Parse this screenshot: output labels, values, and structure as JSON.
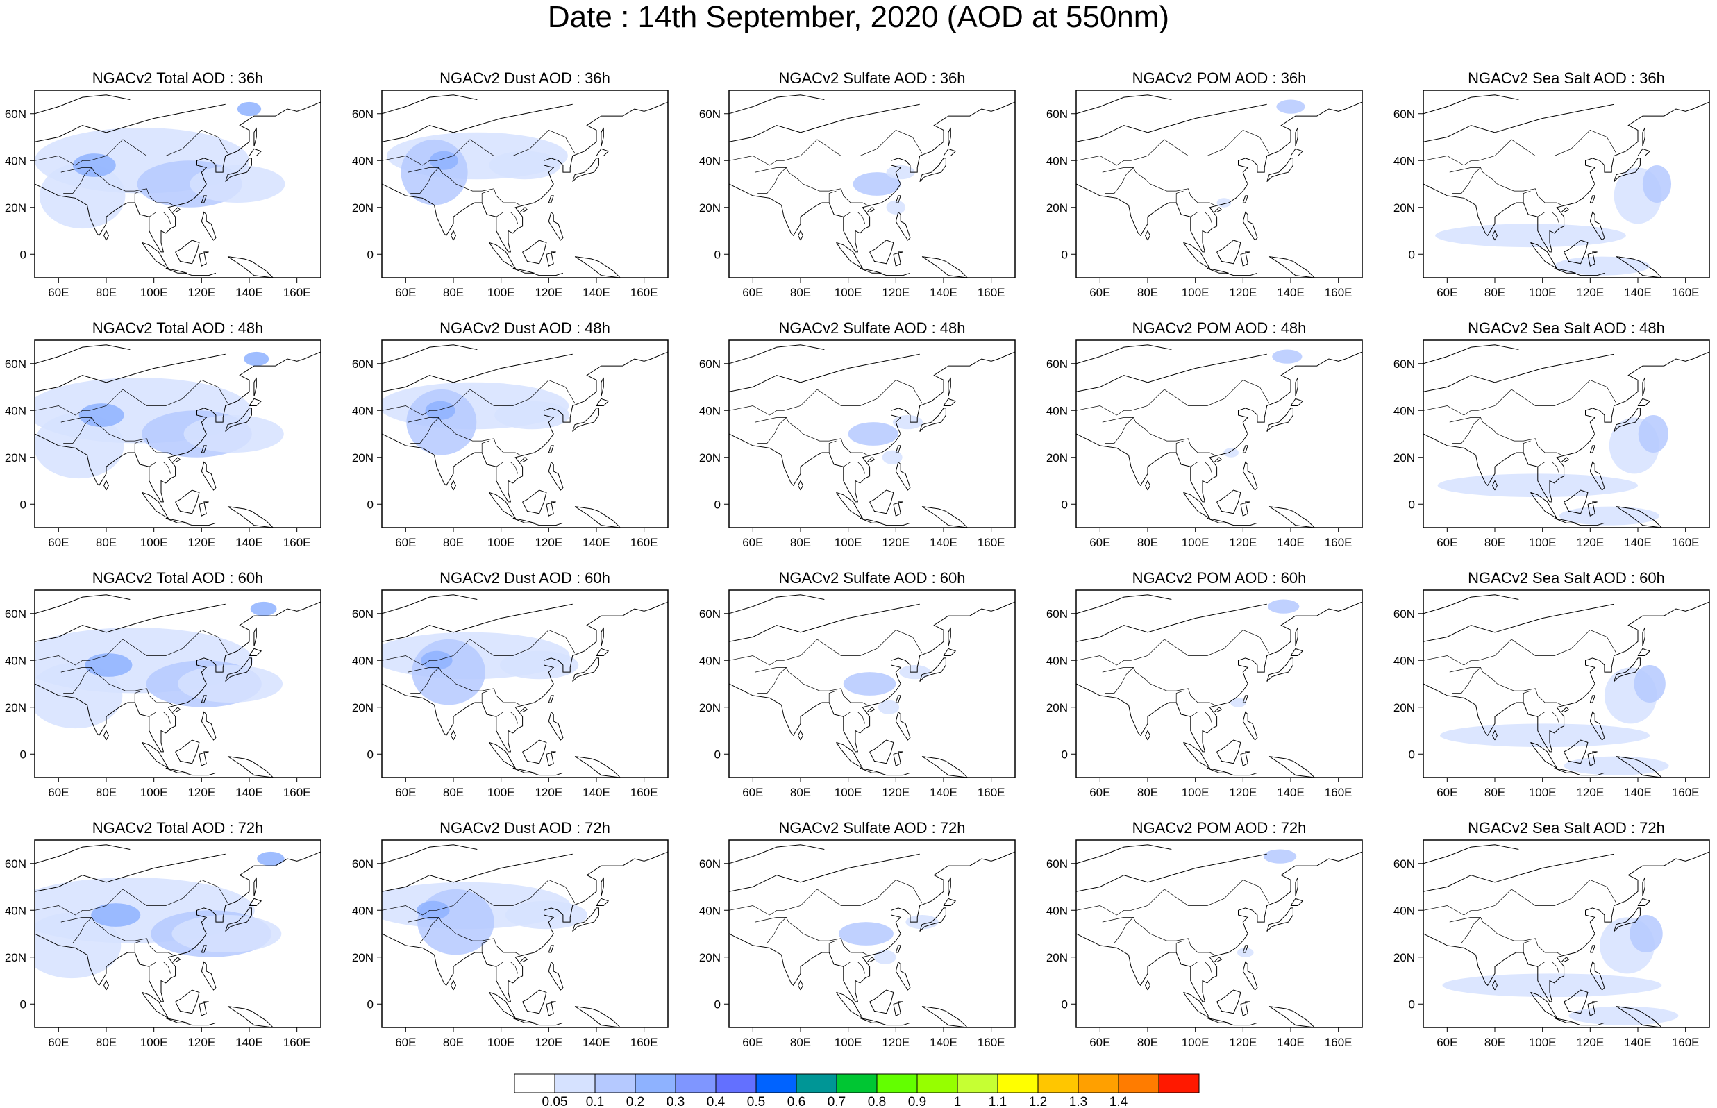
{
  "figure": {
    "title": "Date : 14th September, 2020 (AOD at 550nm)"
  },
  "columns": [
    {
      "species": "Total",
      "titles": [
        "NGACv2 Total AOD : 36h",
        "NGACv2 Total AOD : 48h",
        "NGACv2 Total AOD : 60h",
        "NGACv2 Total AOD : 72h"
      ]
    },
    {
      "species": "Dust",
      "titles": [
        "NGACv2 Dust AOD : 36h",
        "NGACv2 Dust AOD : 48h",
        "NGACv2 Dust AOD : 60h",
        "NGACv2 Dust AOD : 72h"
      ]
    },
    {
      "species": "Sulfate",
      "titles": [
        "NGACv2 Sulfate AOD : 36h",
        "NGACv2 Sulfate AOD : 48h",
        "NGACv2 Sulfate AOD : 60h",
        "NGACv2 Sulfate AOD : 72h"
      ]
    },
    {
      "species": "POM",
      "titles": [
        "NGACv2 POM AOD : 36h",
        "NGACv2 POM AOD : 48h",
        "NGACv2 POM AOD : 60h",
        "NGACv2 POM AOD : 72h"
      ]
    },
    {
      "species": "SeaSalt",
      "titles": [
        "NGACv2 Sea Salt AOD : 36h",
        "NGACv2 Sea Salt AOD : 48h",
        "NGACv2 Sea Salt AOD : 60h",
        "NGACv2 Sea Salt  AOD : 72h"
      ]
    }
  ],
  "axes": {
    "lon_ticks": [
      "60E",
      "80E",
      "100E",
      "120E",
      "140E",
      "160E"
    ],
    "lat_ticks": [
      "60N",
      "40N",
      "20N",
      "0"
    ],
    "lon_range": [
      50,
      170
    ],
    "lat_range": [
      -10,
      70
    ]
  },
  "colorbar": {
    "labels": [
      "0.05",
      "0.1",
      "0.2",
      "0.3",
      "0.4",
      "0.5",
      "0.6",
      "0.7",
      "0.8",
      "0.9",
      "1",
      "1.1",
      "1.2",
      "1.3",
      "1.4"
    ],
    "colors": [
      "#ffffff",
      "#d6e2ff",
      "#b5c9ff",
      "#8eb2ff",
      "#7f96ff",
      "#6370ff",
      "#0063ff",
      "#009696",
      "#00c633",
      "#63ff00",
      "#96ff00",
      "#c6ff33",
      "#ffff00",
      "#ffc600",
      "#ffa000",
      "#ff7c00",
      "#ff1900"
    ]
  }
}
